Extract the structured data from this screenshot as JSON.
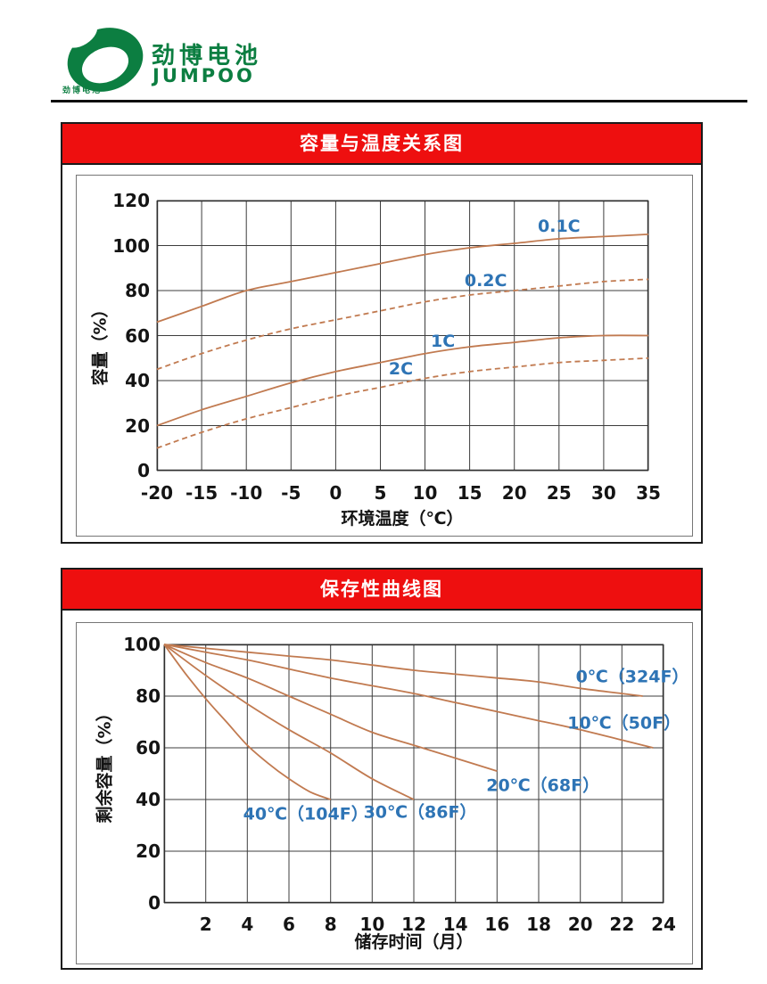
{
  "brand": {
    "name_cn": "劲博电池",
    "name_en": "JUMPOO",
    "mark_caption": "劲博电池"
  },
  "colors": {
    "brand_green": "#0c7e41",
    "banner_red": "#ee0f0f",
    "banner_text": "#ffffff",
    "curve_orange": "#c17a50",
    "label_blue": "#2e74b5",
    "grid": "#3d3d3d"
  },
  "chart_data": [
    {
      "type": "line",
      "title": "容量与温度关系图",
      "xlabel": "环境温度（℃）",
      "ylabel": "容量（%）",
      "xlim": [
        -20,
        35
      ],
      "ylim": [
        0,
        120
      ],
      "grid": true,
      "legend_position": "inline-labels",
      "xticks": [
        -20,
        -15,
        -10,
        -5,
        0,
        5,
        10,
        15,
        20,
        25,
        30,
        35
      ],
      "xticklabels": [
        "-20",
        "-15",
        "-10",
        "-5",
        "0",
        "5",
        "10",
        "15",
        "20",
        "25",
        "30",
        "35"
      ],
      "yticks": [
        0,
        20,
        40,
        60,
        80,
        100,
        120
      ],
      "yticklabels": [
        "0",
        "20",
        "40",
        "60",
        "80",
        "100",
        "120"
      ],
      "series": [
        {
          "name": "0.1C",
          "line": "solid",
          "x": [
            -20,
            -15,
            -10,
            -5,
            0,
            5,
            10,
            15,
            20,
            25,
            30,
            35
          ],
          "y": [
            66,
            73,
            80,
            84,
            88,
            92,
            96,
            99,
            101,
            103,
            104,
            105
          ],
          "label_at": [
            25,
            108.5
          ]
        },
        {
          "name": "0.2C",
          "line": "dashed",
          "x": [
            -20,
            -15,
            -10,
            -5,
            0,
            5,
            10,
            15,
            20,
            25,
            30,
            35
          ],
          "y": [
            45,
            52,
            58,
            63,
            67,
            71,
            75,
            78,
            80,
            82,
            84,
            85
          ],
          "label_at": [
            16.8,
            84.5
          ]
        },
        {
          "name": "1C",
          "line": "solid",
          "x": [
            -20,
            -15,
            -10,
            -5,
            0,
            5,
            10,
            15,
            20,
            25,
            30,
            35
          ],
          "y": [
            20,
            27,
            33,
            39,
            44,
            48,
            52,
            55,
            57,
            59,
            60,
            60
          ],
          "label_at": [
            12,
            57.5
          ]
        },
        {
          "name": "2C",
          "line": "dashed",
          "x": [
            -20,
            -15,
            -10,
            -5,
            0,
            5,
            10,
            15,
            20,
            25,
            30,
            35
          ],
          "y": [
            10,
            17,
            23,
            28,
            33,
            37,
            41,
            44,
            46,
            48,
            49,
            50
          ],
          "label_at": [
            7.3,
            45
          ]
        }
      ]
    },
    {
      "type": "line",
      "title": "保存性曲线图",
      "xlabel": "储存时间（月）",
      "ylabel": "剩余容量（%）",
      "xlim": [
        0,
        24
      ],
      "ylim": [
        0,
        100
      ],
      "grid": true,
      "legend_position": "inline-labels",
      "xticks": [
        0,
        2,
        4,
        6,
        8,
        10,
        12,
        14,
        16,
        18,
        20,
        22,
        24
      ],
      "xticklabels": [
        "",
        "2",
        "4",
        "6",
        "8",
        "10",
        "12",
        "14",
        "16",
        "18",
        "20",
        "22",
        "24"
      ],
      "yticks": [
        0,
        20,
        40,
        60,
        80,
        100
      ],
      "yticklabels": [
        "0",
        "20",
        "40",
        "60",
        "80",
        "100"
      ],
      "series": [
        {
          "name": "0℃（324F）",
          "line": "solid",
          "x": [
            0,
            2,
            4,
            6,
            8,
            10,
            12,
            14,
            16,
            18,
            20,
            22,
            23
          ],
          "y": [
            100,
            98.5,
            97,
            95.5,
            94,
            92,
            90,
            88.5,
            87,
            85.5,
            83,
            81,
            80
          ],
          "label_at": [
            22.5,
            88
          ]
        },
        {
          "name": "10℃（50F）",
          "line": "solid",
          "x": [
            0,
            2,
            4,
            6,
            8,
            10,
            12,
            14,
            16,
            18,
            20,
            22,
            23.5
          ],
          "y": [
            100,
            97,
            94,
            90.5,
            87,
            84,
            81,
            77.5,
            74,
            70.5,
            67,
            63,
            60
          ],
          "label_at": [
            22.1,
            70
          ]
        },
        {
          "name": "20℃（68F）",
          "line": "solid",
          "x": [
            0,
            2,
            4,
            6,
            8,
            10,
            12,
            14,
            16
          ],
          "y": [
            100,
            93,
            87,
            80,
            73,
            66,
            61,
            56,
            51
          ],
          "label_at": [
            18.2,
            46
          ]
        },
        {
          "name": "30℃（86F）",
          "line": "solid",
          "x": [
            0,
            2,
            4,
            6,
            8,
            10,
            12
          ],
          "y": [
            100,
            88,
            77,
            67,
            58,
            48,
            40
          ],
          "label_at": [
            12.3,
            35.5
          ]
        },
        {
          "name": "40℃（104F）",
          "line": "solid",
          "x": [
            0,
            1,
            2,
            3,
            4,
            5,
            6,
            7,
            8
          ],
          "y": [
            100,
            89,
            79,
            70,
            61,
            54,
            48,
            43,
            40
          ],
          "label_at": [
            6.8,
            35
          ]
        }
      ]
    }
  ]
}
